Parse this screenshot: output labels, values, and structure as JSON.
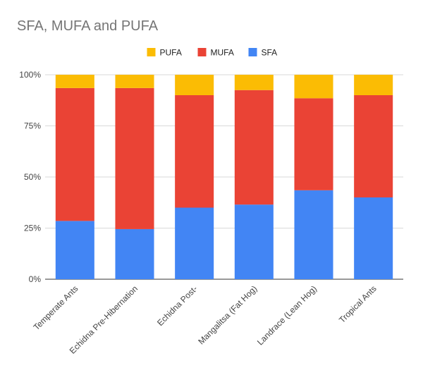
{
  "chart_data": {
    "type": "bar",
    "stacked": "percent",
    "title": "SFA, MUFA and PUFA",
    "xlabel": "",
    "ylabel": "",
    "categories": [
      "Temperate Ants",
      "Echidna Pre-Hibernation",
      "Echidna Post-",
      "Mangalitsa (Fat Hog)",
      "Landrace (Lean Hog)",
      "Tropical Ants"
    ],
    "series": [
      {
        "name": "SFA",
        "color": "#4285f4",
        "values": [
          28.5,
          24.5,
          35,
          36.5,
          43.5,
          40
        ]
      },
      {
        "name": "MUFA",
        "color": "#ea4335",
        "values": [
          65,
          69,
          55,
          56,
          45,
          50
        ]
      },
      {
        "name": "PUFA",
        "color": "#fbbc04",
        "values": [
          6.5,
          6.5,
          10,
          7.5,
          11.5,
          10
        ]
      }
    ],
    "legend_order": [
      "PUFA",
      "MUFA",
      "SFA"
    ],
    "ylim": [
      0,
      100
    ],
    "yticks": [
      "0%",
      "25%",
      "50%",
      "75%",
      "100%"
    ],
    "grid": true,
    "legend_position": "top"
  }
}
